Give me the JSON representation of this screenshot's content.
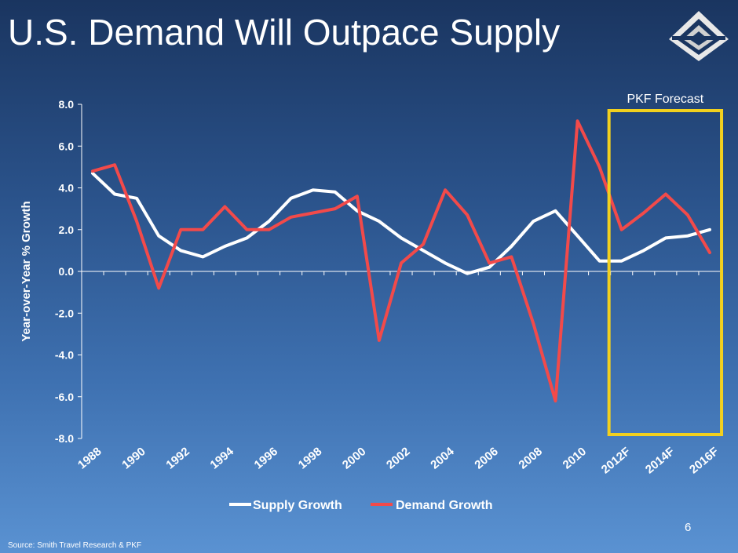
{
  "slide": {
    "title": "U.S. Demand Will Outpace Supply",
    "page_number": "6",
    "source": "Source:  Smith Travel Research & PKF",
    "logo_name": "company-logo"
  },
  "colors": {
    "supply": "#ffffff",
    "demand": "#f24a4a",
    "forecast_box": "#f2d01e"
  },
  "chart_data": {
    "type": "line",
    "title": "",
    "xlabel": "",
    "ylabel": "Year-over-Year % Growth",
    "ylim": [
      -8,
      8
    ],
    "y_ticks": [
      8,
      6,
      4,
      2,
      0,
      -2,
      -4,
      -6,
      -8
    ],
    "y_tick_labels": [
      "8.0",
      "6.0",
      "4.0",
      "2.0",
      "0.0",
      "-2.0",
      "-4.0",
      "-6.0",
      "-8.0"
    ],
    "x": [
      "1988",
      "1989",
      "1990",
      "1991",
      "1992",
      "1993",
      "1994",
      "1995",
      "1996",
      "1997",
      "1998",
      "1999",
      "2000",
      "2001",
      "2002",
      "2003",
      "2004",
      "2005",
      "2006",
      "2007",
      "2008",
      "2009",
      "2010",
      "2011",
      "2012F",
      "2013F",
      "2014F",
      "2015F",
      "2016F"
    ],
    "x_tick_labels": [
      "1988",
      "1990",
      "1992",
      "1994",
      "1996",
      "1998",
      "2000",
      "2002",
      "2004",
      "2006",
      "2008",
      "2010",
      "2012F",
      "2014F",
      "2016F"
    ],
    "series": [
      {
        "name": "Supply Growth",
        "values": [
          4.7,
          3.7,
          3.5,
          1.7,
          1.0,
          0.7,
          1.2,
          1.6,
          2.4,
          3.5,
          3.9,
          3.8,
          2.9,
          2.4,
          1.6,
          1.0,
          0.4,
          -0.1,
          0.2,
          1.2,
          2.4,
          2.9,
          1.7,
          0.5,
          0.5,
          1.0,
          1.6,
          1.7,
          2.0
        ]
      },
      {
        "name": "Demand Growth",
        "values": [
          4.8,
          5.1,
          2.4,
          -0.8,
          2.0,
          2.0,
          3.1,
          2.0,
          2.0,
          2.6,
          2.8,
          3.0,
          3.6,
          -3.3,
          0.4,
          1.3,
          3.9,
          2.7,
          0.4,
          0.7,
          -2.5,
          -6.2,
          7.2,
          5.0,
          2.0,
          2.8,
          3.7,
          2.7,
          0.9
        ]
      }
    ],
    "annotation": {
      "label": "PKF Forecast",
      "start": "2012F",
      "end": "2016F"
    },
    "legend_position": "bottom"
  }
}
